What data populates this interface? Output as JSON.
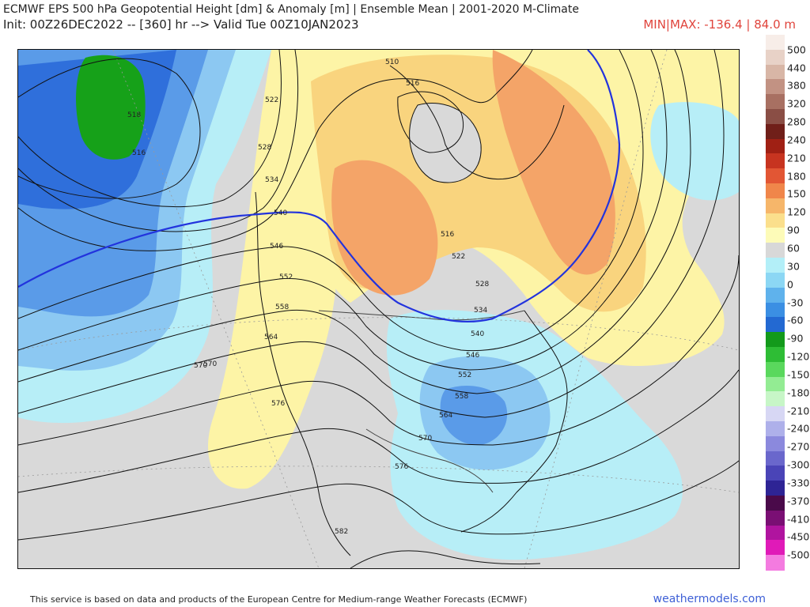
{
  "header": {
    "title": "ECMWF EPS 500 hPa Geopotential Height [dm] & Anomaly [m] | Ensemble Mean | 2001-2020 M-Climate",
    "subtitle": "Init: 00Z26DEC2022 -- [360] hr --> Valid Tue 00Z10JAN2023",
    "minmax": "MIN|MAX: -136.4 | 84.0 m"
  },
  "map": {
    "contour_labels": [
      "510",
      "516",
      "518",
      "516",
      "522",
      "528",
      "534",
      "540",
      "546",
      "552",
      "558",
      "564",
      "570",
      "576",
      "582",
      "516",
      "522",
      "528",
      "534",
      "540",
      "546",
      "552",
      "558",
      "564",
      "570",
      "576",
      "570"
    ]
  },
  "colorbar": {
    "labels": [
      "500",
      "440",
      "380",
      "320",
      "280",
      "240",
      "210",
      "180",
      "150",
      "120",
      "90",
      "60",
      "30",
      "0",
      "-30",
      "-60",
      "-90",
      "-120",
      "-150",
      "-180",
      "-210",
      "-240",
      "-270",
      "-300",
      "-330",
      "-370",
      "-410",
      "-450",
      "-500"
    ],
    "colors": [
      "#f7ede8",
      "#e8d2c7",
      "#d8b6a6",
      "#c29283",
      "#a87062",
      "#8a4e45",
      "#701f19",
      "#a02014",
      "#c73420",
      "#e25634",
      "#f0864a",
      "#f6b66a",
      "#fbdf8c",
      "#fdfbb8",
      "#d8d8d8",
      "#b3eff8",
      "#8cd7f4",
      "#5fb2ec",
      "#3b8fe3",
      "#2369d2",
      "#139a1b",
      "#2ebd35",
      "#5ad85d",
      "#93ec93",
      "#c7f6c7",
      "#d7d7f4",
      "#aeb0ea",
      "#8b89dd",
      "#6a67cc",
      "#4a44b7",
      "#2e2495",
      "#4a0a4a",
      "#7a0f74",
      "#b0149f",
      "#e01ab8",
      "#f47be0"
    ]
  },
  "footer": {
    "credit": "This service is based on data and products of the European Centre for Medium-range Weather Forecasts (ECMWF)",
    "brand": "weathermodels.com"
  },
  "palette": {
    "anomaly_pos_light": "#fdf4a6",
    "anomaly_pos_mid": "#f9d47e",
    "anomaly_pos_strong": "#f4a468",
    "anomaly_neg_light": "#b7eef7",
    "anomaly_neg_mid": "#8cc8f2",
    "anomaly_neg_strong": "#5a9be8",
    "anomaly_neg_deep": "#2f6fdb",
    "anomaly_green": "#16a119",
    "neutral": "#d9d9d9",
    "contour": "#111111",
    "contour_540": "#2233dd"
  }
}
